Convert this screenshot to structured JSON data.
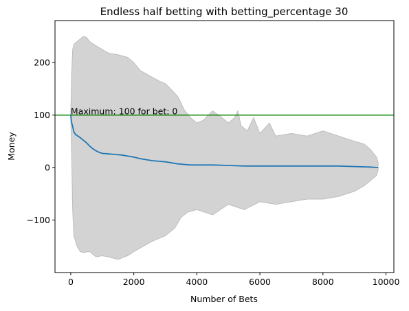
{
  "chart_data": {
    "type": "line",
    "title": "Endless half betting with betting_percentage 30",
    "xlabel": "Number of Bets",
    "ylabel": "Money",
    "xlim": [
      -500,
      10250
    ],
    "ylim": [
      -200,
      280
    ],
    "x_ticks": [
      0,
      2000,
      4000,
      6000,
      8000,
      10000
    ],
    "x_tick_labels": [
      "0",
      "2000",
      "4000",
      "6000",
      "8000",
      "10000"
    ],
    "y_ticks": [
      -100,
      0,
      100,
      200
    ],
    "y_tick_labels": [
      "−100",
      "0",
      "100",
      "200"
    ],
    "grid": false,
    "legend": "none",
    "colors": {
      "mean_line": "#1f77b4",
      "band_fill": "#d3d3d3",
      "band_edge": "#bdbdbd",
      "reference_line": "#008000"
    },
    "annotation": {
      "text": "Maximum: 100 for bet: 0",
      "x": 0,
      "y": 100
    },
    "reference_line": {
      "y": 100
    },
    "mean_series": {
      "x": [
        0,
        20,
        60,
        100,
        150,
        200,
        300,
        400,
        500,
        600,
        700,
        800,
        900,
        1000,
        1200,
        1400,
        1600,
        1800,
        2000,
        2200,
        2400,
        2600,
        2800,
        3000,
        3200,
        3400,
        3600,
        3800,
        4000,
        4500,
        5000,
        5500,
        6000,
        6500,
        7000,
        7500,
        8000,
        8500,
        9000,
        9500,
        9750
      ],
      "y": [
        100,
        88,
        78,
        68,
        63,
        61,
        57,
        52,
        47,
        41,
        36,
        32,
        29,
        27,
        26,
        25,
        24,
        22,
        20,
        17,
        15,
        13,
        12,
        11,
        9,
        7,
        6,
        5,
        5,
        5,
        4,
        3,
        3,
        3,
        3,
        3,
        3,
        3,
        2,
        1,
        0
      ]
    },
    "band_upper": {
      "x": [
        0,
        30,
        60,
        100,
        200,
        300,
        400,
        500,
        600,
        800,
        1000,
        1200,
        1500,
        1800,
        2000,
        2200,
        2500,
        2800,
        3000,
        3200,
        3400,
        3600,
        3800,
        4000,
        4200,
        4500,
        4800,
        5000,
        5200,
        5300,
        5400,
        5600,
        5800,
        6000,
        6300,
        6500,
        7000,
        7500,
        8000,
        8500,
        9000,
        9300,
        9500,
        9700,
        9750
      ],
      "y": [
        100,
        180,
        225,
        235,
        240,
        245,
        250,
        248,
        240,
        232,
        225,
        218,
        215,
        210,
        200,
        185,
        175,
        165,
        160,
        148,
        135,
        110,
        95,
        85,
        90,
        108,
        95,
        85,
        95,
        108,
        80,
        70,
        95,
        65,
        85,
        60,
        65,
        60,
        70,
        60,
        50,
        45,
        35,
        20,
        10
      ]
    },
    "band_lower": {
      "x": [
        0,
        30,
        60,
        100,
        200,
        300,
        400,
        600,
        800,
        1000,
        1200,
        1500,
        1800,
        2000,
        2300,
        2600,
        3000,
        3300,
        3500,
        3700,
        4000,
        4500,
        5000,
        5500,
        6000,
        6500,
        7000,
        7500,
        8000,
        8500,
        9000,
        9300,
        9500,
        9700,
        9750
      ],
      "y": [
        100,
        20,
        -80,
        -130,
        -150,
        -160,
        -162,
        -160,
        -170,
        -168,
        -170,
        -175,
        -168,
        -160,
        -150,
        -140,
        -130,
        -115,
        -95,
        -85,
        -80,
        -90,
        -70,
        -80,
        -65,
        -70,
        -65,
        -60,
        -60,
        -55,
        -45,
        -35,
        -25,
        -15,
        -5
      ]
    }
  }
}
